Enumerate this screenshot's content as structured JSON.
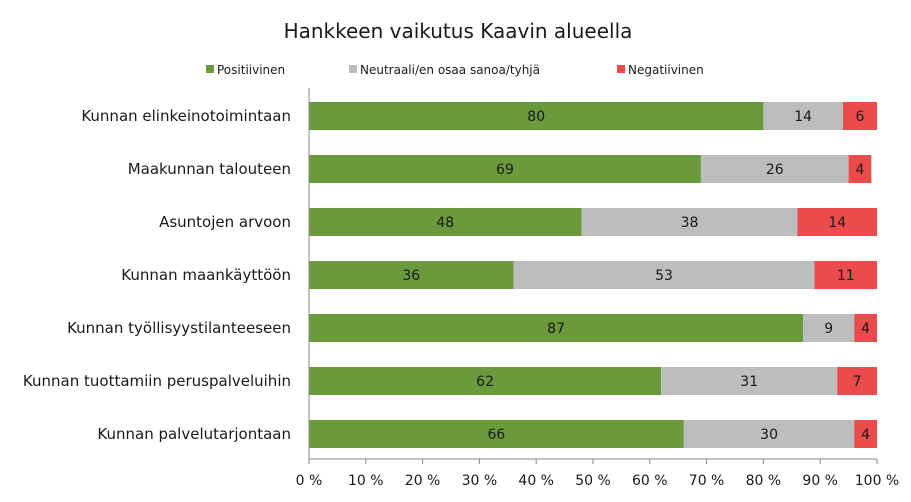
{
  "chart_data": {
    "type": "bar",
    "orientation": "horizontal",
    "stacked": "percent",
    "title": "Hankkeen vaikutus Kaavin alueella",
    "categories": [
      "Kunnan elinkeinotoimintaan",
      "Maakunnan talouteen",
      "Asuntojen arvoon",
      "Kunnan maankäyttöön",
      "Kunnan työllisyystilanteeseen",
      "Kunnan tuottamiin peruspalveluihin",
      "Kunnan palvelutarjontaan"
    ],
    "series": [
      {
        "name": "Positiivinen",
        "color": "#6a9a3c",
        "values": [
          80,
          69,
          48,
          36,
          87,
          62,
          66
        ]
      },
      {
        "name": "Neutraali/en osaa sanoa/tyhjä",
        "color": "#bcbdbe",
        "values": [
          14,
          26,
          38,
          53,
          9,
          31,
          30
        ]
      },
      {
        "name": "Negatiivinen",
        "color": "#ec4b4b",
        "values": [
          6,
          4,
          14,
          11,
          4,
          7,
          4
        ]
      }
    ],
    "xlim": [
      0,
      100
    ],
    "xticks": [
      "0 %",
      "10 %",
      "20 %",
      "30 %",
      "40 %",
      "50 %",
      "60 %",
      "70 %",
      "80 %",
      "90 %",
      "100 %"
    ],
    "legend_position": "top",
    "grid": false
  }
}
